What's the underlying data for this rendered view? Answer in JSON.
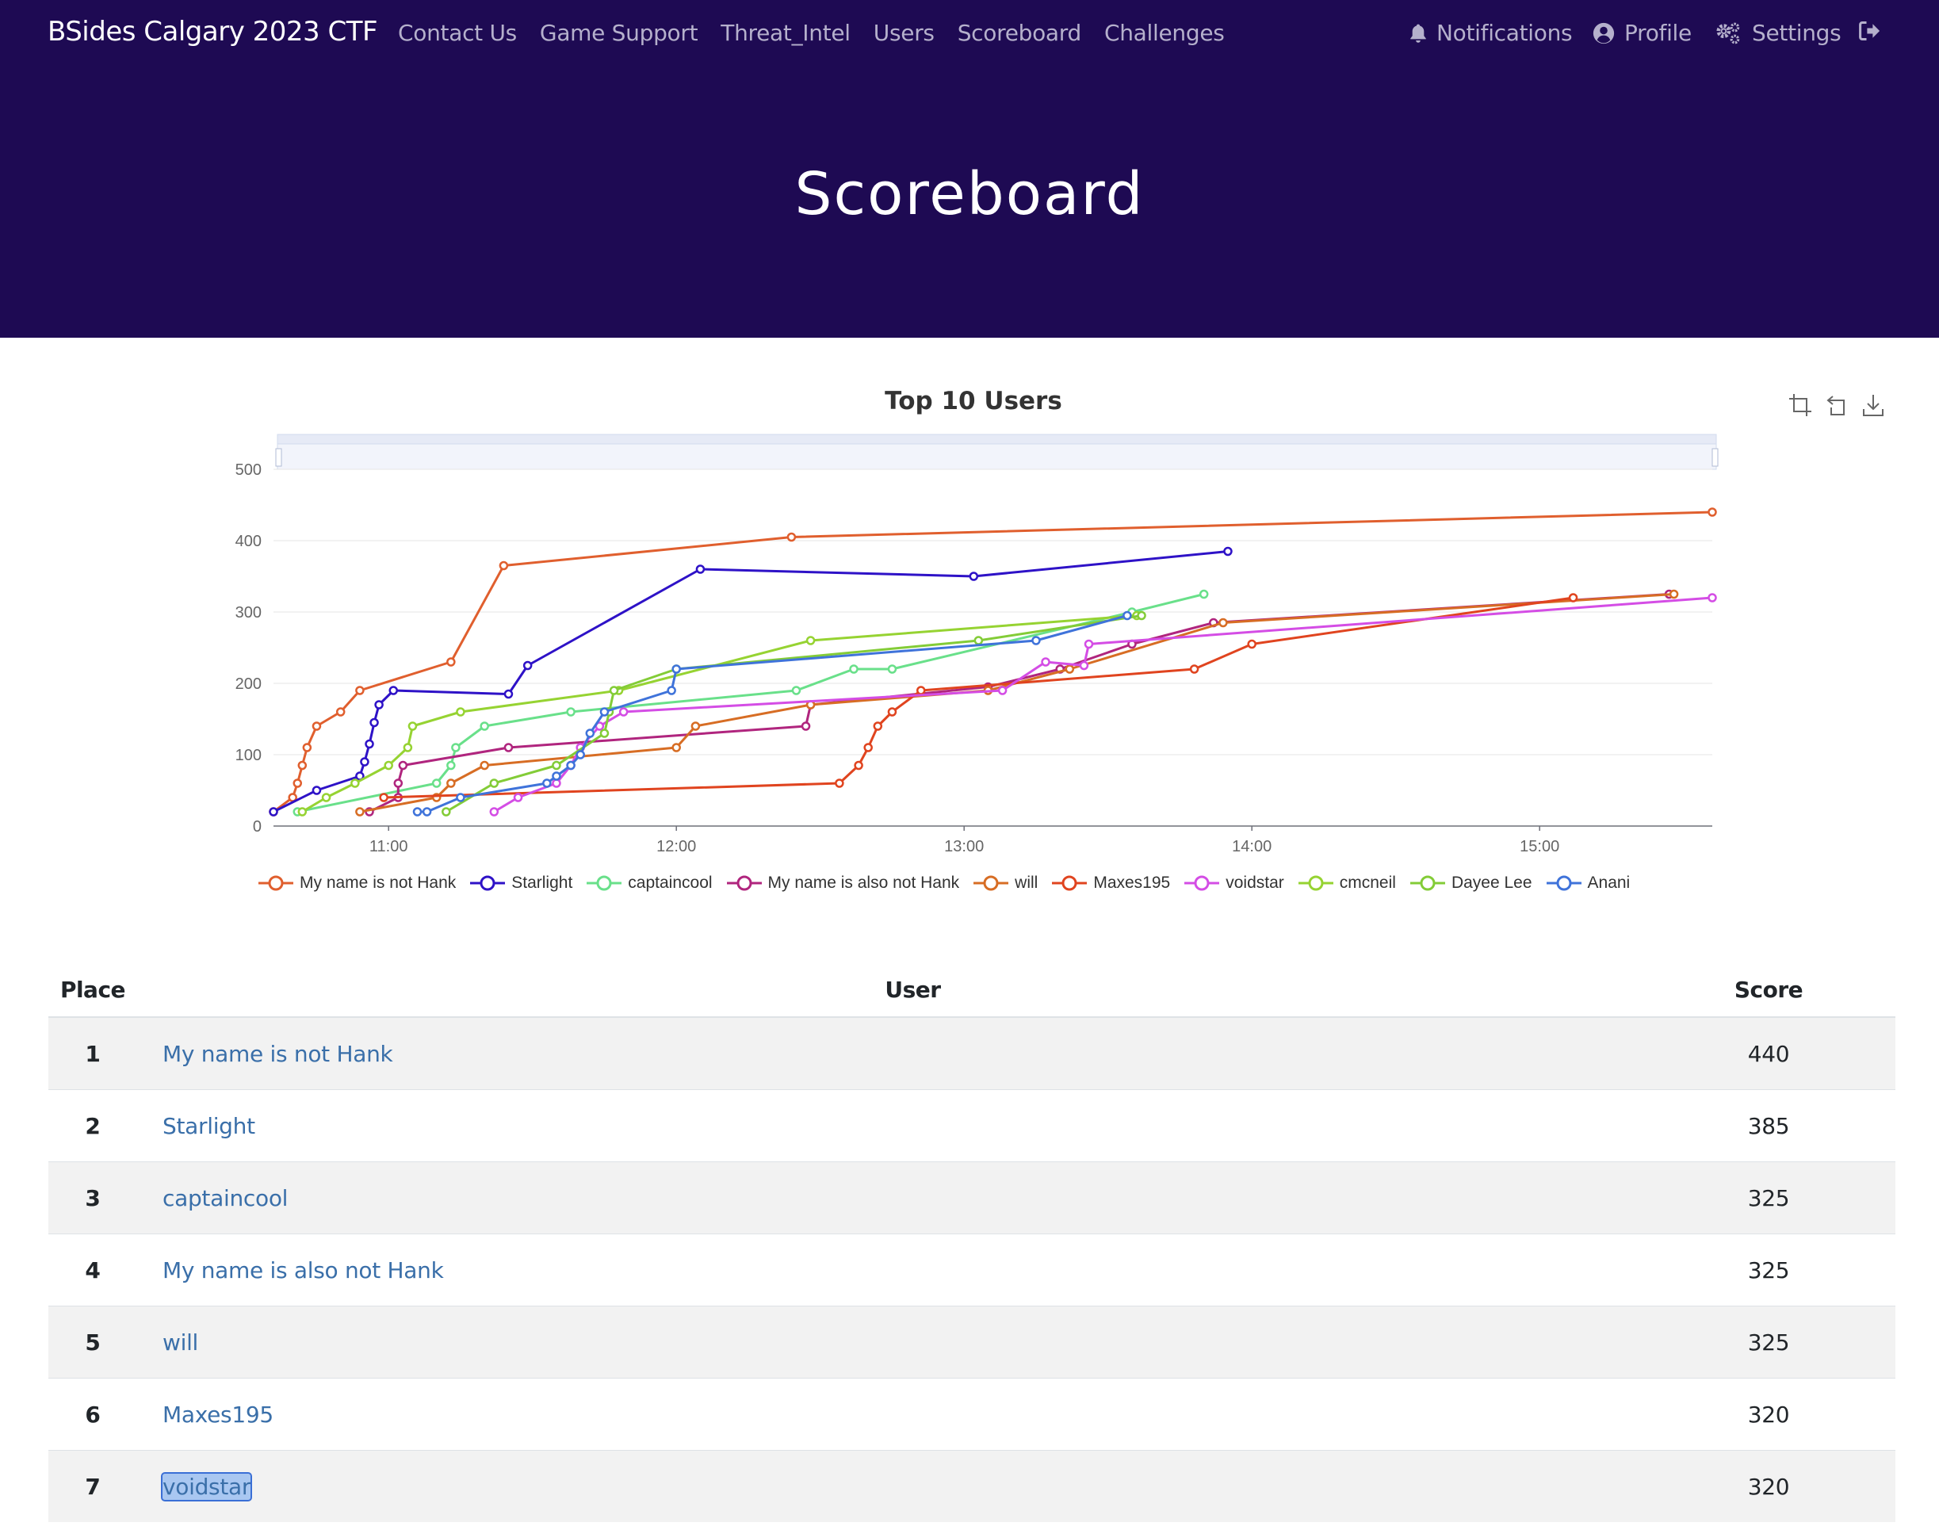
{
  "navbar": {
    "brand": "BSides Calgary 2023 CTF",
    "left_links": [
      "Contact Us",
      "Game Support",
      "Threat_Intel",
      "Users",
      "Scoreboard",
      "Challenges"
    ],
    "notifications": "Notifications",
    "profile": "Profile",
    "settings": "Settings",
    "logout_icon": "sign-out-icon"
  },
  "page": {
    "title": "Scoreboard"
  },
  "toolbox": [
    "zoom-icon",
    "zoom-reset-icon",
    "download-icon"
  ],
  "chart_data": {
    "type": "line",
    "title": "Top 10 Users",
    "y_ticks": [
      "0",
      "100",
      "200",
      "300",
      "400",
      "500"
    ],
    "x_ticks": [
      "11:00",
      "12:00",
      "13:00",
      "14:00",
      "15:00"
    ],
    "ylim": [
      0,
      500
    ],
    "xlim": [
      "10:36",
      "15:36"
    ],
    "grid": true,
    "legend_position": "bottom",
    "dataZoom": "top slider",
    "series": [
      {
        "name": "My name is not Hank",
        "color": "#e05f2e",
        "points": [
          [
            "10:36",
            20
          ],
          [
            "10:40",
            40
          ],
          [
            "10:41",
            60
          ],
          [
            "10:42",
            85
          ],
          [
            "10:43",
            110
          ],
          [
            "10:45",
            140
          ],
          [
            "10:50",
            160
          ],
          [
            "10:54",
            190
          ],
          [
            "11:13",
            230
          ],
          [
            "11:24",
            365
          ],
          [
            "12:24",
            405
          ],
          [
            "15:36",
            440
          ]
        ]
      },
      {
        "name": "Starlight",
        "color": "#2e12c7",
        "points": [
          [
            "10:36",
            20
          ],
          [
            "10:45",
            50
          ],
          [
            "10:54",
            70
          ],
          [
            "10:55",
            90
          ],
          [
            "10:56",
            115
          ],
          [
            "10:57",
            145
          ],
          [
            "10:58",
            170
          ],
          [
            "11:01",
            190
          ],
          [
            "11:25",
            185
          ],
          [
            "11:29",
            225
          ],
          [
            "12:05",
            360
          ],
          [
            "13:02",
            350
          ],
          [
            "13:55",
            385
          ]
        ]
      },
      {
        "name": "captaincool",
        "color": "#69e08a",
        "points": [
          [
            "10:41",
            20
          ],
          [
            "11:10",
            60
          ],
          [
            "11:13",
            85
          ],
          [
            "11:14",
            110
          ],
          [
            "11:20",
            140
          ],
          [
            "11:38",
            160
          ],
          [
            "12:25",
            190
          ],
          [
            "12:37",
            220
          ],
          [
            "12:45",
            220
          ],
          [
            "13:35",
            300
          ],
          [
            "13:50",
            325
          ]
        ]
      },
      {
        "name": "My name is also not Hank",
        "color": "#b0257e",
        "points": [
          [
            "10:56",
            20
          ],
          [
            "11:02",
            40
          ],
          [
            "11:02",
            60
          ],
          [
            "11:03",
            85
          ],
          [
            "11:25",
            110
          ],
          [
            "12:27",
            140
          ],
          [
            "12:28",
            170
          ],
          [
            "13:05",
            195
          ],
          [
            "13:20",
            220
          ],
          [
            "13:35",
            255
          ],
          [
            "13:52",
            285
          ],
          [
            "15:27",
            325
          ]
        ]
      },
      {
        "name": "will",
        "color": "#d76d24",
        "points": [
          [
            "10:54",
            20
          ],
          [
            "11:10",
            40
          ],
          [
            "11:13",
            60
          ],
          [
            "11:20",
            85
          ],
          [
            "12:00",
            110
          ],
          [
            "12:04",
            140
          ],
          [
            "12:28",
            170
          ],
          [
            "13:05",
            190
          ],
          [
            "13:22",
            220
          ],
          [
            "13:54",
            285
          ],
          [
            "15:28",
            325
          ]
        ]
      },
      {
        "name": "Maxes195",
        "color": "#e0441f",
        "points": [
          [
            "10:59",
            40
          ],
          [
            "12:34",
            60
          ],
          [
            "12:38",
            85
          ],
          [
            "12:40",
            110
          ],
          [
            "12:42",
            140
          ],
          [
            "12:45",
            160
          ],
          [
            "12:51",
            190
          ],
          [
            "13:48",
            220
          ],
          [
            "14:00",
            255
          ],
          [
            "15:07",
            320
          ]
        ]
      },
      {
        "name": "voidstar",
        "color": "#d44de5",
        "points": [
          [
            "11:22",
            20
          ],
          [
            "11:27",
            40
          ],
          [
            "11:35",
            60
          ],
          [
            "11:38",
            85
          ],
          [
            "11:40",
            110
          ],
          [
            "11:44",
            140
          ],
          [
            "11:49",
            160
          ],
          [
            "13:08",
            190
          ],
          [
            "13:17",
            230
          ],
          [
            "13:25",
            225
          ],
          [
            "13:26",
            255
          ],
          [
            "15:36",
            320
          ]
        ]
      },
      {
        "name": "cmcneil",
        "color": "#96d332",
        "points": [
          [
            "10:42",
            20
          ],
          [
            "10:47",
            40
          ],
          [
            "10:53",
            60
          ],
          [
            "11:00",
            85
          ],
          [
            "11:04",
            110
          ],
          [
            "11:05",
            140
          ],
          [
            "11:15",
            160
          ],
          [
            "11:48",
            190
          ],
          [
            "12:28",
            260
          ],
          [
            "13:36",
            295
          ]
        ]
      },
      {
        "name": "Dayee Lee",
        "color": "#83cc37",
        "points": [
          [
            "11:12",
            20
          ],
          [
            "11:22",
            60
          ],
          [
            "11:35",
            85
          ],
          [
            "11:45",
            130
          ],
          [
            "11:46",
            160
          ],
          [
            "11:47",
            190
          ],
          [
            "12:00",
            220
          ],
          [
            "13:03",
            260
          ],
          [
            "13:37",
            295
          ]
        ]
      },
      {
        "name": "Anani",
        "color": "#3f73da",
        "points": [
          [
            "11:06",
            20
          ],
          [
            "11:08",
            20
          ],
          [
            "11:15",
            40
          ],
          [
            "11:33",
            60
          ],
          [
            "11:35",
            70
          ],
          [
            "11:38",
            85
          ],
          [
            "11:40",
            100
          ],
          [
            "11:42",
            130
          ],
          [
            "11:45",
            160
          ],
          [
            "11:59",
            190
          ],
          [
            "12:00",
            220
          ],
          [
            "13:15",
            260
          ],
          [
            "13:34",
            295
          ]
        ]
      }
    ]
  },
  "table": {
    "headers": {
      "place": "Place",
      "user": "User",
      "score": "Score"
    },
    "rows": [
      {
        "place": "1",
        "user": "My name is not Hank",
        "score": "440"
      },
      {
        "place": "2",
        "user": "Starlight",
        "score": "385"
      },
      {
        "place": "3",
        "user": "captaincool",
        "score": "325"
      },
      {
        "place": "4",
        "user": "My name is also not Hank",
        "score": "325"
      },
      {
        "place": "5",
        "user": "will",
        "score": "325"
      },
      {
        "place": "6",
        "user": "Maxes195",
        "score": "320"
      },
      {
        "place": "7",
        "user": "voidstar",
        "score": "320"
      }
    ]
  }
}
